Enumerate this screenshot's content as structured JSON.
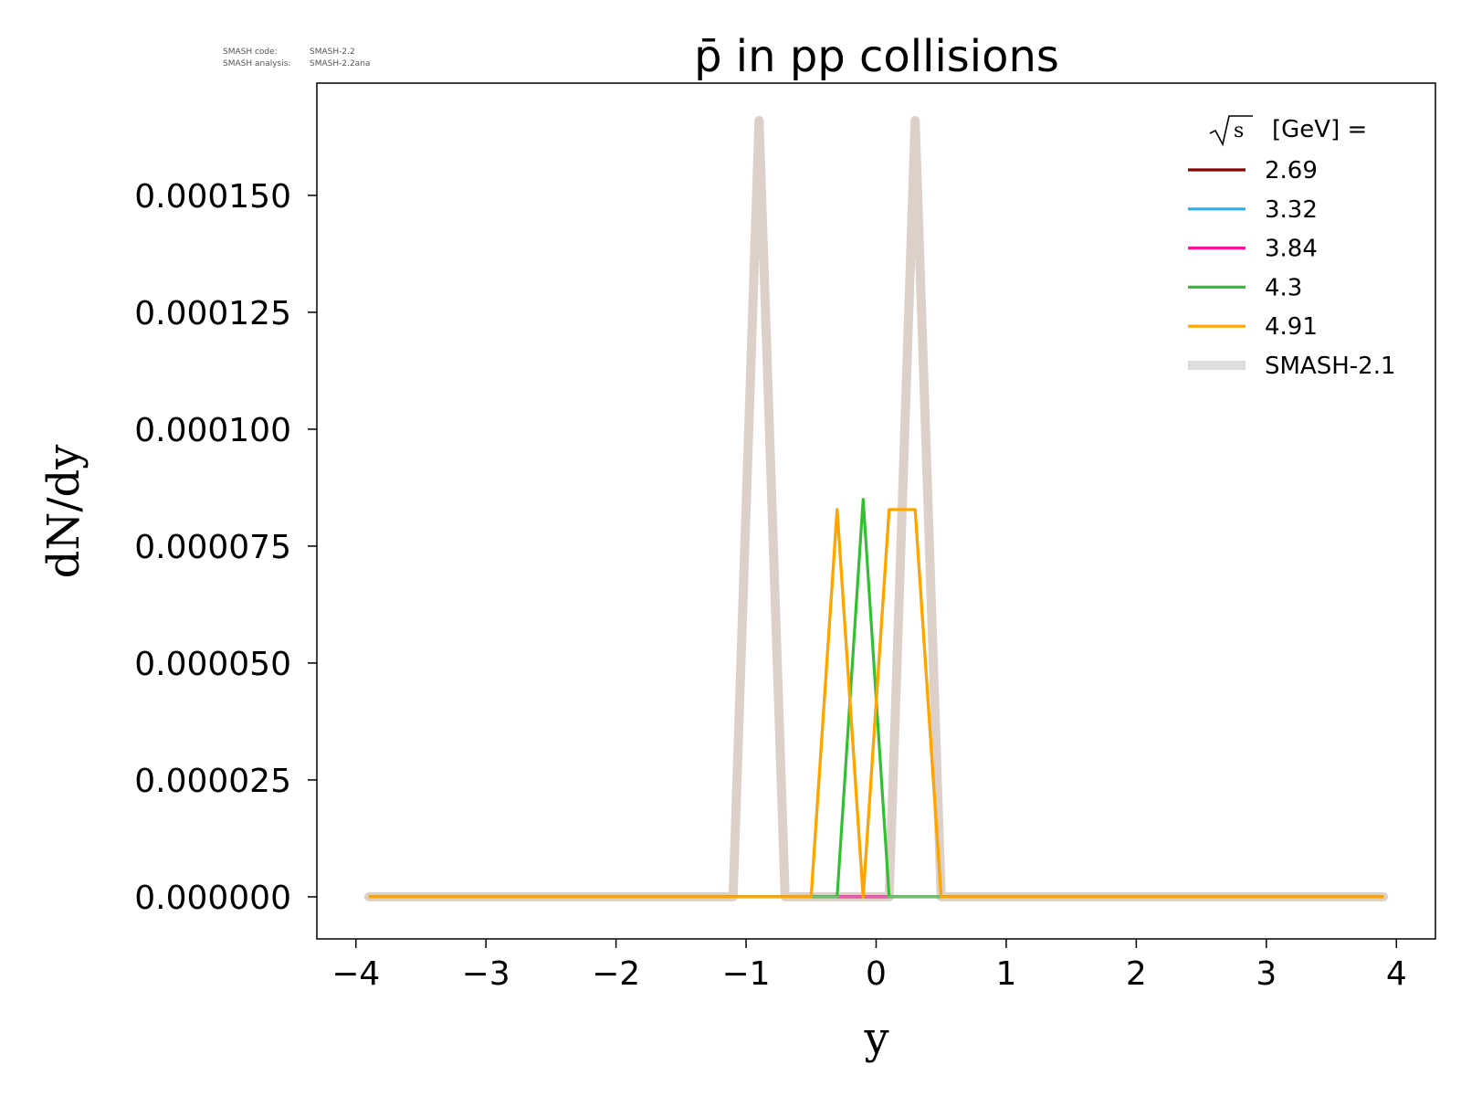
{
  "watermark": {
    "line1_label": "SMASH code:",
    "line1_value": "SMASH-2.2",
    "line2_label": "SMASH analysis:",
    "line2_value": "SMASH-2.2ana"
  },
  "chart_data": {
    "type": "line",
    "title": "p̄ in pp collisions",
    "xlabel": "y",
    "ylabel": "dN/dy",
    "xlim": [
      -4.3,
      4.3
    ],
    "ylim": [
      -9e-06,
      0.000174
    ],
    "xticks": [
      -4,
      -3,
      -2,
      -1,
      0,
      1,
      2,
      3,
      4
    ],
    "xtick_labels": [
      "−4",
      "−3",
      "−2",
      "−1",
      "0",
      "1",
      "2",
      "3",
      "4"
    ],
    "yticks": [
      0,
      2.5e-05,
      5e-05,
      7.5e-05,
      0.0001,
      0.000125,
      0.00015
    ],
    "ytick_labels": [
      "0.000000",
      "0.000025",
      "0.000050",
      "0.000075",
      "0.000100",
      "0.000125",
      "0.000150"
    ],
    "grid": false,
    "legend": {
      "placement": "top-right",
      "title_symbol": "s",
      "title_text": "[GeV] ="
    },
    "series": [
      {
        "name": "SMASH-2.1",
        "color": "#dcd0c8",
        "legend_color": "#dddddd",
        "style": "reference",
        "x": [
          -3.9,
          -1.1,
          -0.9,
          -0.7,
          -0.3,
          -0.1,
          0.1,
          0.3,
          0.5,
          3.9
        ],
        "y": [
          0,
          0,
          0.000166,
          0,
          0,
          0,
          0,
          0.000166,
          0,
          0
        ]
      },
      {
        "name": "2.69",
        "color": "#8b0000",
        "style": "line",
        "x": [
          -3.9,
          3.9
        ],
        "y": [
          0,
          0
        ]
      },
      {
        "name": "3.32",
        "color": "#1eb4ec",
        "style": "line",
        "x": [
          -3.9,
          3.9
        ],
        "y": [
          0,
          0
        ]
      },
      {
        "name": "3.84",
        "color": "#ff1493",
        "style": "line",
        "x": [
          -3.9,
          3.9
        ],
        "y": [
          0,
          0
        ]
      },
      {
        "name": "4.3",
        "color": "#32c032",
        "style": "line",
        "x": [
          -3.9,
          -0.3,
          -0.1,
          0.1,
          3.9
        ],
        "y": [
          0,
          0,
          8.5e-05,
          0,
          0
        ]
      },
      {
        "name": "4.91",
        "color": "#ffa500",
        "style": "line",
        "x": [
          -3.9,
          -0.5,
          -0.3,
          -0.1,
          0.1,
          0.3,
          0.5,
          3.9
        ],
        "y": [
          0,
          0,
          8.28e-05,
          0,
          8.28e-05,
          8.28e-05,
          0,
          0
        ]
      }
    ],
    "legend_order": [
      "2.69",
      "3.32",
      "3.84",
      "4.3",
      "4.91",
      "SMASH-2.1"
    ]
  }
}
